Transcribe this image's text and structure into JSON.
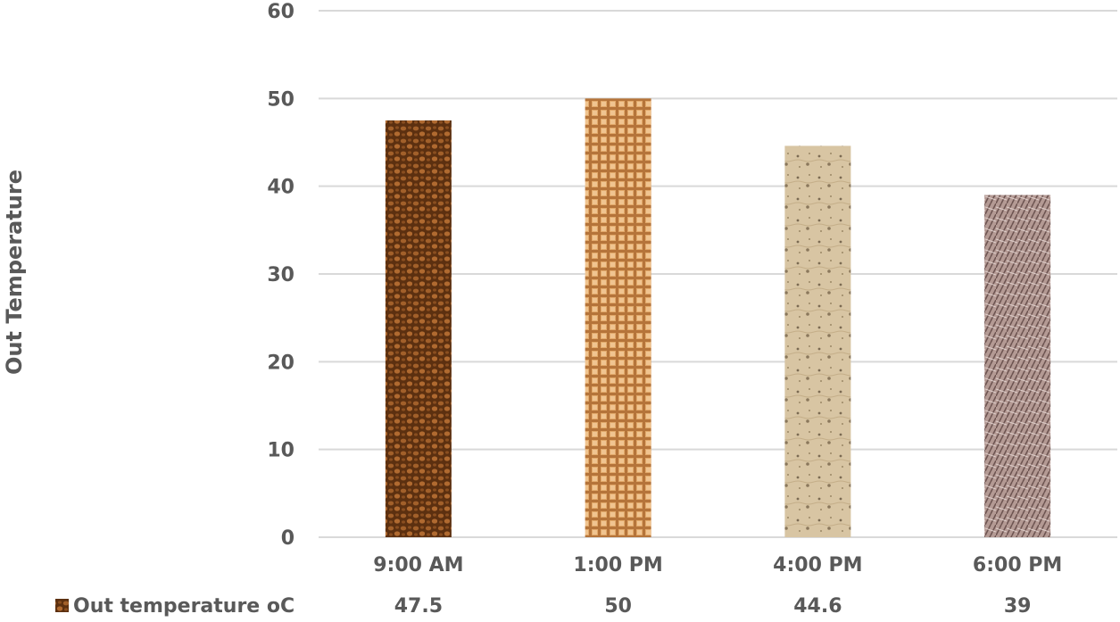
{
  "chart_data": {
    "type": "bar",
    "categories": [
      "9:00 AM",
      "1:00 PM",
      "4:00 PM",
      "6:00 PM"
    ],
    "series": [
      {
        "name": "Out temperature oC",
        "values": [
          47.5,
          50,
          44.6,
          39
        ]
      }
    ],
    "value_labels": [
      "47.5",
      "50",
      "44.6",
      "39"
    ],
    "xlabel": "",
    "ylabel": "Out Temperature",
    "ylim": [
      0,
      60
    ],
    "yticks": [
      "0",
      "10",
      "20",
      "30",
      "40",
      "50",
      "60"
    ],
    "grid": true,
    "legend": "data-table-row",
    "colors": {
      "gridline": "#d9d9d9",
      "axis_text": "#595959",
      "bar_fills": [
        "#7a4418",
        "#d99a57",
        "#d6c2a0",
        "#a58a86"
      ]
    }
  }
}
